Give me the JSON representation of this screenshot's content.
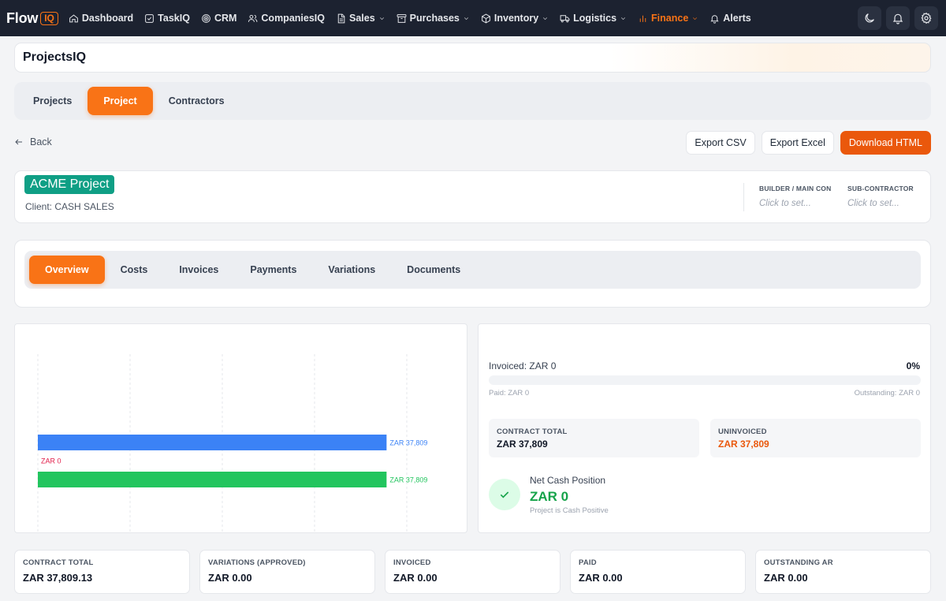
{
  "brand": {
    "name": "Flow",
    "badge": "IQ"
  },
  "nav": [
    {
      "label": "Dashboard",
      "icon": "home-icon",
      "dropdown": false,
      "active": false
    },
    {
      "label": "TaskIQ",
      "icon": "checkbox-icon",
      "dropdown": false,
      "active": false
    },
    {
      "label": "CRM",
      "icon": "target-icon",
      "dropdown": false,
      "active": false
    },
    {
      "label": "CompaniesIQ",
      "icon": "users-icon",
      "dropdown": false,
      "active": false
    },
    {
      "label": "Sales",
      "icon": "document-icon",
      "dropdown": true,
      "active": false
    },
    {
      "label": "Purchases",
      "icon": "archive-icon",
      "dropdown": true,
      "active": false
    },
    {
      "label": "Inventory",
      "icon": "cube-icon",
      "dropdown": true,
      "active": false
    },
    {
      "label": "Logistics",
      "icon": "truck-icon",
      "dropdown": true,
      "active": false
    },
    {
      "label": "Finance",
      "icon": "bar-chart-icon",
      "dropdown": true,
      "active": true
    },
    {
      "label": "Alerts",
      "icon": "bell-icon",
      "dropdown": false,
      "active": false
    }
  ],
  "page_title": "ProjectsIQ",
  "main_tabs": [
    {
      "label": "Projects",
      "active": false
    },
    {
      "label": "Project",
      "active": true
    },
    {
      "label": "Contractors",
      "active": false
    }
  ],
  "back_label": "Back",
  "actions": {
    "export_csv": "Export CSV",
    "export_excel": "Export Excel",
    "download_html": "Download HTML"
  },
  "project": {
    "name": "ACME Project",
    "client": "Client: CASH SALES",
    "builder_label": "BUILDER / MAIN CON",
    "builder_value": "Click to set...",
    "sub_label": "SUB-CONTRACTOR",
    "sub_value": "Click to set..."
  },
  "section_tabs": [
    {
      "label": "Overview",
      "active": true
    },
    {
      "label": "Costs",
      "active": false
    },
    {
      "label": "Invoices",
      "active": false
    },
    {
      "label": "Payments",
      "active": false
    },
    {
      "label": "Variations",
      "active": false
    },
    {
      "label": "Documents",
      "active": false
    }
  ],
  "chart_data": {
    "type": "bar",
    "orientation": "horizontal",
    "x": {
      "min": 0,
      "max": 40000
    },
    "grid": true,
    "colors": [
      "#3b82f6",
      "#e11d48",
      "#22c55e"
    ],
    "values": [
      37809,
      0,
      37809
    ],
    "labels": [
      "ZAR 37,809",
      "ZAR 0",
      "ZAR 37,809"
    ]
  },
  "summary": {
    "invoiced": "Invoiced: ZAR 0",
    "invoiced_pct": "0%",
    "progress": 0,
    "paid": "Paid: ZAR 0",
    "outstanding": "Outstanding: ZAR 0",
    "contract_label": "CONTRACT TOTAL",
    "contract_value": "ZAR 37,809",
    "uninvoiced_label": "UNINVOICED",
    "uninvoiced_value": "ZAR 37,809",
    "cash_label": "Net Cash Position",
    "cash_value": "ZAR 0",
    "cash_sub": "Project is Cash Positive"
  },
  "kpis": [
    {
      "label": "CONTRACT TOTAL",
      "value": "ZAR 37,809.13"
    },
    {
      "label": "VARIATIONS (APPROVED)",
      "value": "ZAR 0.00"
    },
    {
      "label": "INVOICED",
      "value": "ZAR 0.00"
    },
    {
      "label": "PAID",
      "value": "ZAR 0.00"
    },
    {
      "label": "OUTSTANDING AR",
      "value": "ZAR 0.00"
    }
  ]
}
